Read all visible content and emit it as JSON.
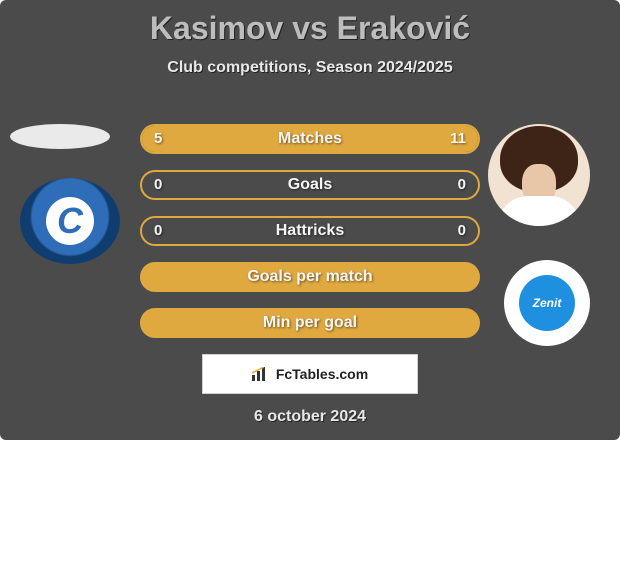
{
  "title": "Kasimov vs Eraković",
  "subtitle": "Club competitions, Season 2024/2025",
  "date": "6 october 2024",
  "attribution": "FcTables.com",
  "colors": {
    "card_bg": "#4b4b4b",
    "accent": "#e0a93f",
    "text": "#e8e8e8"
  },
  "left": {
    "player_placeholder_color": "#eaeaea",
    "club_initial": "C",
    "club_colors": [
      "#2f6db8",
      "#0f3d6f",
      "#ffffff"
    ]
  },
  "right": {
    "club_label": "Zenit",
    "club_colors": [
      "#ffffff",
      "#1f8fe0"
    ]
  },
  "rows": [
    {
      "label": "Matches",
      "left": "5",
      "right": "11",
      "left_fill_pct": 31,
      "right_fill_pct": 69,
      "style": "split"
    },
    {
      "label": "Goals",
      "left": "0",
      "right": "0",
      "left_fill_pct": 0,
      "right_fill_pct": 0,
      "style": "empty"
    },
    {
      "label": "Hattricks",
      "left": "0",
      "right": "0",
      "left_fill_pct": 0,
      "right_fill_pct": 0,
      "style": "empty"
    },
    {
      "label": "Goals per match",
      "left": "",
      "right": "",
      "left_fill_pct": 100,
      "right_fill_pct": 0,
      "style": "full"
    },
    {
      "label": "Min per goal",
      "left": "",
      "right": "",
      "left_fill_pct": 100,
      "right_fill_pct": 0,
      "style": "full"
    }
  ]
}
